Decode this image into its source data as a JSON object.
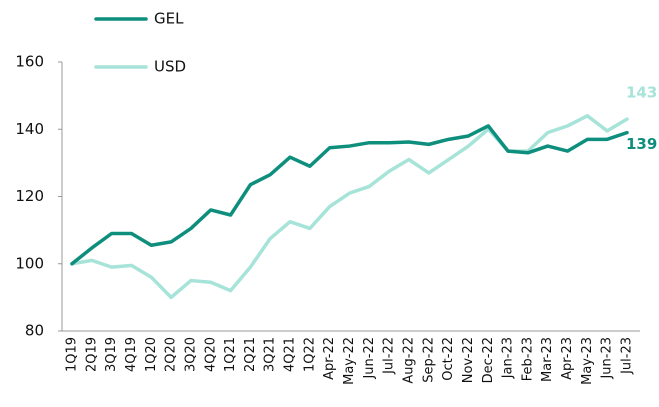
{
  "chart_data": {
    "type": "line",
    "categories": [
      "1Q19",
      "2Q19",
      "3Q19",
      "4Q19",
      "1Q20",
      "2Q20",
      "3Q20",
      "4Q20",
      "1Q21",
      "2Q21",
      "3Q21",
      "4Q21",
      "1Q22",
      "Apr-22",
      "May-22",
      "Jun-22",
      "Jul-22",
      "Aug-22",
      "Sep-22",
      "Oct-22",
      "Nov-22",
      "Dec-22",
      "Jan-23",
      "Feb-23",
      "Mar-23",
      "Apr-23",
      "May-23",
      "Jun-23",
      "Jul-23"
    ],
    "series": [
      {
        "name": "GEL",
        "color": "#0e8f7e",
        "end_label": "139",
        "values": [
          100,
          104.7,
          109,
          109,
          105.5,
          106.5,
          110.5,
          116,
          114.5,
          123.5,
          126.5,
          131.7,
          129,
          134.5,
          135,
          136,
          136,
          136.2,
          135.5,
          137,
          138,
          141,
          133.5,
          133,
          135,
          133.5,
          137,
          137,
          139
        ]
      },
      {
        "name": "USD",
        "color": "#a6e3d8",
        "end_label": "143",
        "values": [
          100,
          101,
          99,
          99.5,
          96,
          90,
          95,
          94.5,
          92,
          99,
          107.5,
          112.5,
          110.5,
          117,
          121,
          123,
          127.5,
          131,
          127,
          131,
          135,
          140,
          133.5,
          133.5,
          139,
          141,
          144,
          139.5,
          143
        ]
      }
    ],
    "ylim": [
      80,
      160
    ],
    "yticks": [
      80,
      100,
      120,
      140,
      160
    ],
    "legend": "top-left"
  }
}
